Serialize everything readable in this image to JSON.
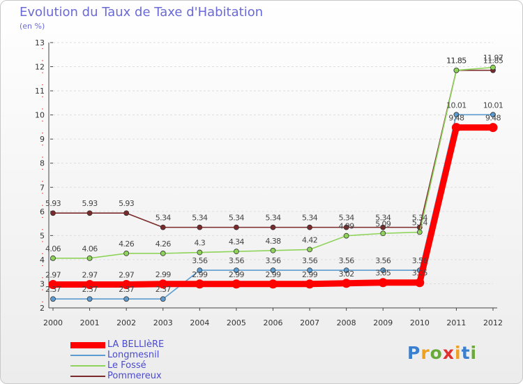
{
  "title": "Evolution du Taux de Taxe d'Habitation",
  "subtitle": "(en %)",
  "logo_text": "Proxiti",
  "chart_data": {
    "type": "line",
    "title": "Evolution du Taux de Taxe d'Habitation",
    "ylabel": "(en %)",
    "xlabel": "",
    "x": [
      "2000",
      "2001",
      "2002",
      "2003",
      "2004",
      "2005",
      "2006",
      "2007",
      "2008",
      "2009",
      "2010",
      "2011",
      "2012"
    ],
    "ylim": [
      2,
      13
    ],
    "yticks": [
      "2",
      "3",
      "4",
      "5",
      "6",
      "7",
      "8",
      "9",
      "10",
      "11",
      "12",
      "13"
    ],
    "legend_position": "bottom-left",
    "series": [
      {
        "name": "LA BELLIèRE",
        "color": "#ff0000",
        "values": [
          2.97,
          2.97,
          2.97,
          2.99,
          2.99,
          2.99,
          2.99,
          2.99,
          3.02,
          3.05,
          3.05,
          9.48,
          9.48
        ],
        "labels": [
          "2.97",
          "2.97",
          "2.97",
          "2.99",
          "2.99",
          "2.99",
          "2.99",
          "2.99",
          "3.02",
          "3.05",
          "3.05",
          "9.48",
          "9.48"
        ]
      },
      {
        "name": "Longmesnil",
        "color": "#5b9bd0",
        "values": [
          2.37,
          2.37,
          2.37,
          2.37,
          3.56,
          3.56,
          3.56,
          3.56,
          3.56,
          3.56,
          3.56,
          10.01,
          10.01
        ],
        "labels": [
          "2.37",
          "2.37",
          "2.37",
          "2.37",
          "3.56",
          "3.56",
          "3.56",
          "3.56",
          "3.56",
          "3.56",
          "3.56",
          "10.01",
          "10.01"
        ]
      },
      {
        "name": "Le Fossé",
        "color": "#8fd45a",
        "values": [
          4.06,
          4.06,
          4.26,
          4.26,
          4.3,
          4.34,
          4.38,
          4.42,
          4.99,
          5.09,
          5.14,
          11.85,
          11.97
        ],
        "labels": [
          "4.06",
          "4.06",
          "4.26",
          "4.26",
          "4.3",
          "4.34",
          "4.38",
          "4.42",
          "4.99",
          "5.09",
          "5.14",
          "11.85",
          "11.97"
        ]
      },
      {
        "name": "Pommereux",
        "color": "#7a2a2a",
        "values": [
          5.93,
          5.93,
          5.93,
          5.34,
          5.34,
          5.34,
          5.34,
          5.34,
          5.34,
          5.34,
          5.34,
          11.85,
          11.85
        ],
        "labels": [
          "5.93",
          "5.93",
          "5.93",
          "5.34",
          "5.34",
          "5.34",
          "5.34",
          "5.34",
          "5.34",
          "5.34",
          "5.34",
          "11.85",
          "11.85"
        ]
      }
    ]
  }
}
